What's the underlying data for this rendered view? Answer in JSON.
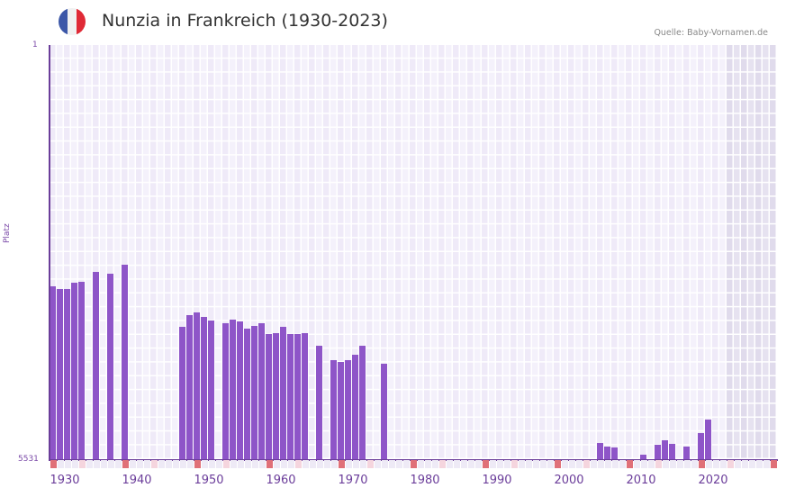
{
  "header": {
    "title": "Nunzia in Frankreich (1930-2023)",
    "source": "Quelle: Baby-Vornamen.de",
    "flag": {
      "colors": [
        "#3c57a8",
        "#f1f1f1",
        "#e02a36"
      ],
      "icon": "france-flag-icon"
    }
  },
  "colors": {
    "bar": "#8e55c8",
    "axis": "#6b3d9a",
    "grid_cell_a": "#efeaf8",
    "grid_cell_b": "#f4f1fb",
    "future_shade": "#e3dfee",
    "decade_marker": "#e07078",
    "half_decade_marker": "#f5d5de",
    "minor_marker": "#eeeaf6"
  },
  "chart_data": {
    "type": "bar",
    "title": "Nunzia in Frankreich (1930-2023)",
    "xlabel": "",
    "ylabel": "Platz",
    "y_inverted": true,
    "ylim": [
      5531,
      1
    ],
    "ytick_labels": [
      "1",
      "5531"
    ],
    "xtick_labels": [
      "1930",
      "1940",
      "1950",
      "1960",
      "1970",
      "1980",
      "1990",
      "2000",
      "2010",
      "2020"
    ],
    "x_range": [
      1930,
      2030
    ],
    "shaded_future_from": 2024,
    "grid": true,
    "legend": null,
    "x": [
      1930,
      1931,
      1932,
      1933,
      1934,
      1936,
      1938,
      1940,
      1948,
      1949,
      1950,
      1951,
      1952,
      1954,
      1955,
      1956,
      1957,
      1958,
      1959,
      1960,
      1961,
      1962,
      1963,
      1964,
      1965,
      1967,
      1969,
      1970,
      1971,
      1972,
      1973,
      1976,
      2006,
      2007,
      2008,
      2012,
      2014,
      2015,
      2016,
      2018,
      2020,
      2021
    ],
    "values": [
      3222,
      3258,
      3258,
      3174,
      3162,
      3029,
      3053,
      2933,
      3763,
      3607,
      3571,
      3631,
      3679,
      3715,
      3667,
      3691,
      3787,
      3751,
      3715,
      3859,
      3847,
      3763,
      3859,
      3859,
      3847,
      4016,
      4208,
      4232,
      4208,
      4136,
      4016,
      4256,
      5313,
      5361,
      5373,
      5469,
      5337,
      5277,
      5325,
      5361,
      5181,
      5000
    ]
  },
  "axis": {
    "y_top": "1",
    "y_bottom": "5531",
    "y_title": "Platz"
  }
}
